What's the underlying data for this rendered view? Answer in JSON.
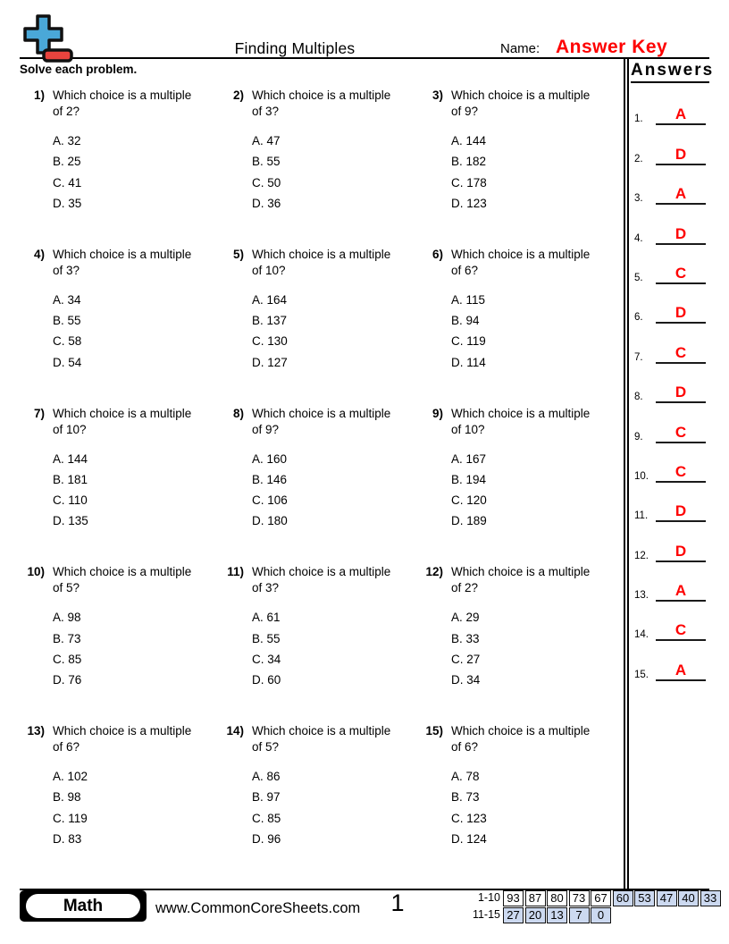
{
  "colors": {
    "accent_red": "#fe0000",
    "logo_blue": "#4aa8d8",
    "logo_red": "#e8443e",
    "score_highlight": "#ccd9f0"
  },
  "header": {
    "title": "Finding Multiples",
    "name_label": "Name:",
    "name_value": "Answer Key",
    "instructions": "Solve each problem."
  },
  "answers_panel": {
    "title": "Answers",
    "items": [
      {
        "num": "1.",
        "letter": "A"
      },
      {
        "num": "2.",
        "letter": "D"
      },
      {
        "num": "3.",
        "letter": "A"
      },
      {
        "num": "4.",
        "letter": "D"
      },
      {
        "num": "5.",
        "letter": "C"
      },
      {
        "num": "6.",
        "letter": "D"
      },
      {
        "num": "7.",
        "letter": "C"
      },
      {
        "num": "8.",
        "letter": "D"
      },
      {
        "num": "9.",
        "letter": "C"
      },
      {
        "num": "10.",
        "letter": "C"
      },
      {
        "num": "11.",
        "letter": "D"
      },
      {
        "num": "12.",
        "letter": "D"
      },
      {
        "num": "13.",
        "letter": "A"
      },
      {
        "num": "14.",
        "letter": "C"
      },
      {
        "num": "15.",
        "letter": "A"
      }
    ]
  },
  "questions": [
    {
      "num": "1)",
      "line1": "Which choice is a multiple",
      "line2": "of 2?",
      "choices": [
        "A. 32",
        "B. 25",
        "C. 41",
        "D. 35"
      ]
    },
    {
      "num": "2)",
      "line1": "Which choice is a multiple",
      "line2": "of 3?",
      "choices": [
        "A. 47",
        "B. 55",
        "C. 50",
        "D. 36"
      ]
    },
    {
      "num": "3)",
      "line1": "Which choice is a multiple",
      "line2": "of 9?",
      "choices": [
        "A. 144",
        "B. 182",
        "C. 178",
        "D. 123"
      ]
    },
    {
      "num": "4)",
      "line1": "Which choice is a multiple",
      "line2": "of 3?",
      "choices": [
        "A. 34",
        "B. 55",
        "C. 58",
        "D. 54"
      ]
    },
    {
      "num": "5)",
      "line1": "Which choice is a multiple",
      "line2": "of 10?",
      "choices": [
        "A. 164",
        "B. 137",
        "C. 130",
        "D. 127"
      ]
    },
    {
      "num": "6)",
      "line1": "Which choice is a multiple",
      "line2": "of 6?",
      "choices": [
        "A. 115",
        "B. 94",
        "C. 119",
        "D. 114"
      ]
    },
    {
      "num": "7)",
      "line1": "Which choice is a multiple",
      "line2": "of 10?",
      "choices": [
        "A. 144",
        "B. 181",
        "C. 110",
        "D. 135"
      ]
    },
    {
      "num": "8)",
      "line1": "Which choice is a multiple",
      "line2": "of 9?",
      "choices": [
        "A. 160",
        "B. 146",
        "C. 106",
        "D. 180"
      ]
    },
    {
      "num": "9)",
      "line1": "Which choice is a multiple",
      "line2": "of 10?",
      "choices": [
        "A. 167",
        "B. 194",
        "C. 120",
        "D. 189"
      ]
    },
    {
      "num": "10)",
      "line1": "Which choice is a multiple",
      "line2": "of 5?",
      "choices": [
        "A. 98",
        "B. 73",
        "C. 85",
        "D. 76"
      ]
    },
    {
      "num": "11)",
      "line1": "Which choice is a multiple",
      "line2": "of 3?",
      "choices": [
        "A. 61",
        "B. 55",
        "C. 34",
        "D. 60"
      ]
    },
    {
      "num": "12)",
      "line1": "Which choice is a multiple",
      "line2": "of 2?",
      "choices": [
        "A. 29",
        "B. 33",
        "C. 27",
        "D. 34"
      ]
    },
    {
      "num": "13)",
      "line1": "Which choice is a multiple",
      "line2": "of 6?",
      "choices": [
        "A. 102",
        "B. 98",
        "C. 119",
        "D. 83"
      ]
    },
    {
      "num": "14)",
      "line1": "Which choice is a multiple",
      "line2": "of 5?",
      "choices": [
        "A. 86",
        "B. 97",
        "C. 85",
        "D. 96"
      ]
    },
    {
      "num": "15)",
      "line1": "Which choice is a multiple",
      "line2": "of 6?",
      "choices": [
        "A. 78",
        "B. 73",
        "C. 123",
        "D. 124"
      ]
    }
  ],
  "footer": {
    "subject": "Math",
    "website": "www.CommonCoreSheets.com",
    "page_number": "1",
    "score": {
      "rows": [
        {
          "label": "1-10",
          "cells": [
            {
              "v": "93",
              "hl": false
            },
            {
              "v": "87",
              "hl": false
            },
            {
              "v": "80",
              "hl": false
            },
            {
              "v": "73",
              "hl": false
            },
            {
              "v": "67",
              "hl": false
            },
            {
              "v": "60",
              "hl": true
            },
            {
              "v": "53",
              "hl": true
            },
            {
              "v": "47",
              "hl": true
            },
            {
              "v": "40",
              "hl": true
            },
            {
              "v": "33",
              "hl": true
            }
          ]
        },
        {
          "label": "11-15",
          "cells": [
            {
              "v": "27",
              "hl": true
            },
            {
              "v": "20",
              "hl": true
            },
            {
              "v": "13",
              "hl": true
            },
            {
              "v": "7",
              "hl": true
            },
            {
              "v": "0",
              "hl": true
            }
          ]
        }
      ]
    }
  }
}
